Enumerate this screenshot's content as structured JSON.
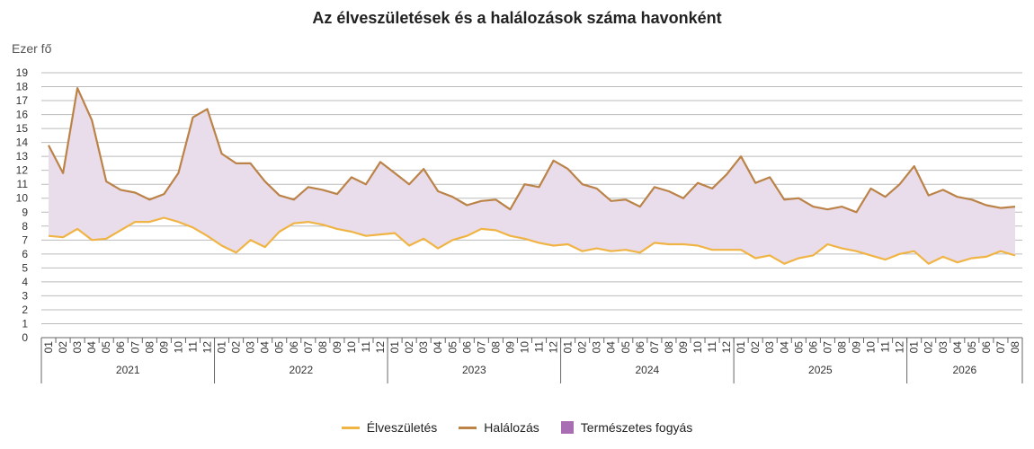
{
  "colors": {
    "births": "#F0B445",
    "deaths": "#BB8348",
    "fill": "#E9DCEB",
    "fill_legend": "#A86DB2",
    "grid": "#BBBBBB",
    "axis": "#666666"
  },
  "chart_data": {
    "type": "line",
    "title": "Az élveszületések és a halálozások száma havonként",
    "ylabel": "Ezer fő",
    "ylim": [
      0,
      19
    ],
    "yticks": [
      0,
      1,
      2,
      3,
      4,
      5,
      6,
      7,
      8,
      9,
      10,
      11,
      12,
      13,
      14,
      15,
      16,
      17,
      18,
      19
    ],
    "grid": true,
    "legend_position": "bottom",
    "x": [
      "2021-01",
      "2021-02",
      "2021-03",
      "2021-04",
      "2021-05",
      "2021-06",
      "2021-07",
      "2021-08",
      "2021-09",
      "2021-10",
      "2021-11",
      "2021-12",
      "2022-01",
      "2022-02",
      "2022-03",
      "2022-04",
      "2022-05",
      "2022-06",
      "2022-07",
      "2022-08",
      "2022-09",
      "2022-10",
      "2022-11",
      "2022-12",
      "2023-01",
      "2023-02",
      "2023-03",
      "2023-04",
      "2023-05",
      "2023-06",
      "2023-07",
      "2023-08",
      "2023-09",
      "2023-10",
      "2023-11",
      "2023-12",
      "2024-01",
      "2024-02",
      "2024-03",
      "2024-04",
      "2024-05",
      "2024-06",
      "2024-07",
      "2024-08",
      "2024-09",
      "2024-10",
      "2024-11",
      "2024-12",
      "2025-01",
      "2025-02",
      "2025-03",
      "2025-04",
      "2025-05",
      "2025-06",
      "2025-07",
      "2025-08",
      "2025-09",
      "2025-10",
      "2025-11",
      "2025-12",
      "2026-01",
      "2026-02",
      "2026-03",
      "2026-04",
      "2026-05",
      "2026-06",
      "2026-07",
      "2026-08"
    ],
    "month_labels": [
      "01",
      "02",
      "03",
      "04",
      "05",
      "06",
      "07",
      "08",
      "09",
      "10",
      "11",
      "12",
      "01",
      "02",
      "03",
      "04",
      "05",
      "06",
      "07",
      "08",
      "09",
      "10",
      "11",
      "12",
      "01",
      "02",
      "03",
      "04",
      "05",
      "06",
      "07",
      "08",
      "09",
      "10",
      "11",
      "12",
      "01",
      "02",
      "03",
      "04",
      "05",
      "06",
      "07",
      "08",
      "09",
      "10",
      "11",
      "12",
      "01",
      "02",
      "03",
      "04",
      "05",
      "06",
      "07",
      "08",
      "09",
      "10",
      "11",
      "12",
      "01",
      "02",
      "03",
      "04",
      "05",
      "06",
      "07",
      "08"
    ],
    "years": [
      {
        "label": "2021",
        "months": 12
      },
      {
        "label": "2022",
        "months": 12
      },
      {
        "label": "2023",
        "months": 12
      },
      {
        "label": "2024",
        "months": 12
      },
      {
        "label": "2025",
        "months": 12
      },
      {
        "label": "2026",
        "months": 8
      }
    ],
    "series": [
      {
        "name": "Élveszületés",
        "values": [
          7.3,
          7.2,
          7.8,
          7.0,
          7.1,
          7.7,
          8.3,
          8.3,
          8.6,
          8.3,
          7.9,
          7.3,
          6.6,
          6.1,
          7.0,
          6.5,
          7.6,
          8.2,
          8.3,
          8.1,
          7.8,
          7.6,
          7.3,
          7.4,
          7.5,
          6.6,
          7.1,
          6.4,
          7.0,
          7.3,
          7.8,
          7.7,
          7.3,
          7.1,
          6.8,
          6.6,
          6.7,
          6.2,
          6.4,
          6.2,
          6.3,
          6.1,
          6.8,
          6.7,
          6.7,
          6.6,
          6.3,
          6.3,
          6.3,
          5.7,
          5.9,
          5.3,
          5.7,
          5.9,
          6.7,
          6.4,
          6.2,
          5.9,
          5.6,
          6.0,
          6.2,
          5.3,
          5.8,
          5.4,
          5.7,
          5.8,
          6.2,
          5.9
        ]
      },
      {
        "name": "Halálozás",
        "values": [
          13.8,
          11.8,
          17.9,
          15.6,
          11.2,
          10.6,
          10.4,
          9.9,
          10.3,
          11.8,
          15.8,
          16.4,
          13.2,
          12.5,
          12.5,
          11.2,
          10.2,
          9.9,
          10.8,
          10.6,
          10.3,
          11.5,
          11.0,
          12.6,
          11.8,
          11.0,
          12.1,
          10.5,
          10.1,
          9.5,
          9.8,
          9.9,
          9.2,
          11.0,
          10.8,
          12.7,
          12.1,
          11.0,
          10.7,
          9.8,
          9.9,
          9.4,
          10.8,
          10.5,
          10.0,
          11.1,
          10.7,
          11.7,
          13.0,
          11.1,
          11.5,
          9.9,
          10.0,
          9.4,
          9.2,
          9.4,
          9.0,
          10.7,
          10.1,
          11.0,
          12.3,
          10.2,
          10.6,
          10.1,
          9.9,
          9.5,
          9.3,
          9.4
        ]
      }
    ],
    "fill_area": {
      "name": "Természetes fogyás",
      "between": [
        "Élveszületés",
        "Halálozás"
      ]
    }
  },
  "legend": {
    "births": "Élveszületés",
    "deaths": "Halálozás",
    "fill": "Természetes fogyás"
  }
}
